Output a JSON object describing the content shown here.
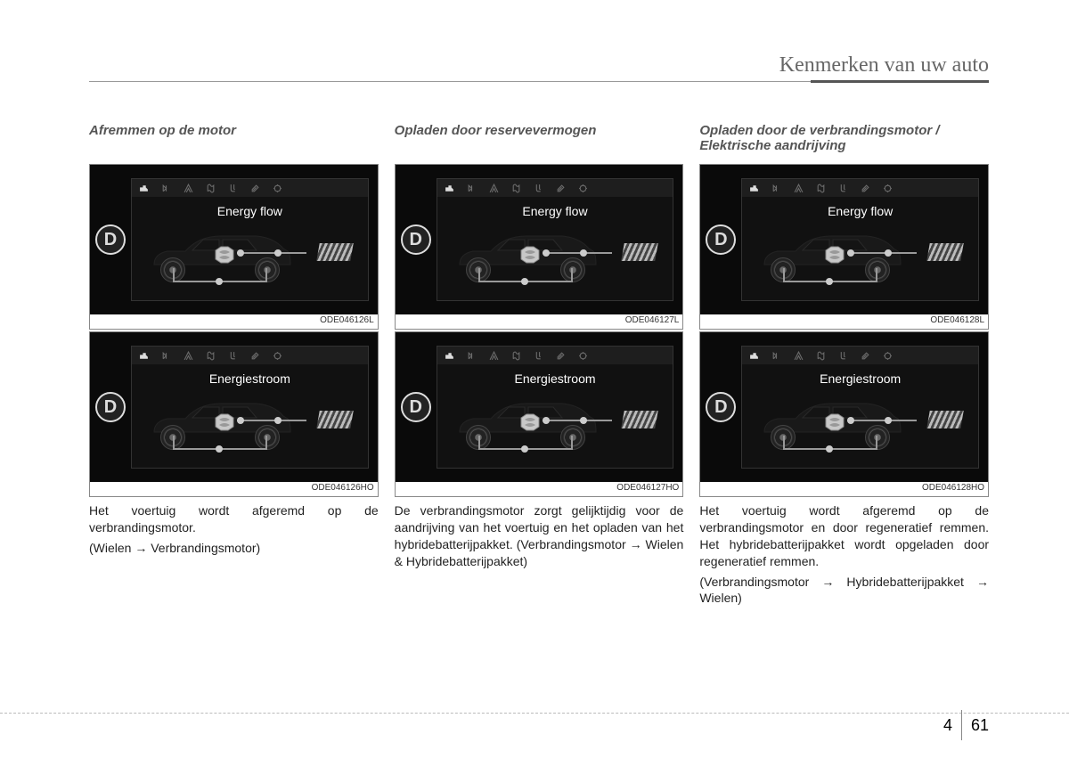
{
  "header": {
    "title": "Kenmerken van uw auto"
  },
  "columns": [
    {
      "title": "Afremmen op de motor",
      "fig1": {
        "screen_title": "Energy flow",
        "code": "ODE046126L"
      },
      "fig2": {
        "screen_title": "Energiestroom",
        "code": "ODE046126HO"
      },
      "paras": [
        "Het voertuig wordt afgeremd op de verbrandingsmotor.",
        "(Wielen → Verbrandingsmotor)"
      ],
      "justify": true
    },
    {
      "title": "Opladen door reservevermogen",
      "fig1": {
        "screen_title": "Energy flow",
        "code": "ODE046127L"
      },
      "fig2": {
        "screen_title": "Energiestroom",
        "code": "ODE046127HO"
      },
      "paras": [
        "De verbrandingsmotor zorgt gelijktijdig voor de aandrijving van het voertuig en het opladen van het hybridebatterijpakket. (Verbrandingsmotor → Wielen & Hybridebatterijpakket)"
      ],
      "justify": true
    },
    {
      "title": "Opladen door de verbrandingsmotor / Elektrische aandrijving",
      "fig1": {
        "screen_title": "Energy flow",
        "code": "ODE046128L"
      },
      "fig2": {
        "screen_title": "Energiestroom",
        "code": "ODE046128HO"
      },
      "paras": [
        "Het voertuig wordt afgeremd op de verbrandingsmotor en door regeneratief remmen. Het hybridebatterijpakket wordt opgeladen door regeneratief remmen.",
        "(Verbrandingsmotor → Hybridebatterijpakket → Wielen)"
      ],
      "justify": true
    }
  ],
  "gear_label": "D",
  "footer": {
    "chapter": "4",
    "page": "61"
  }
}
